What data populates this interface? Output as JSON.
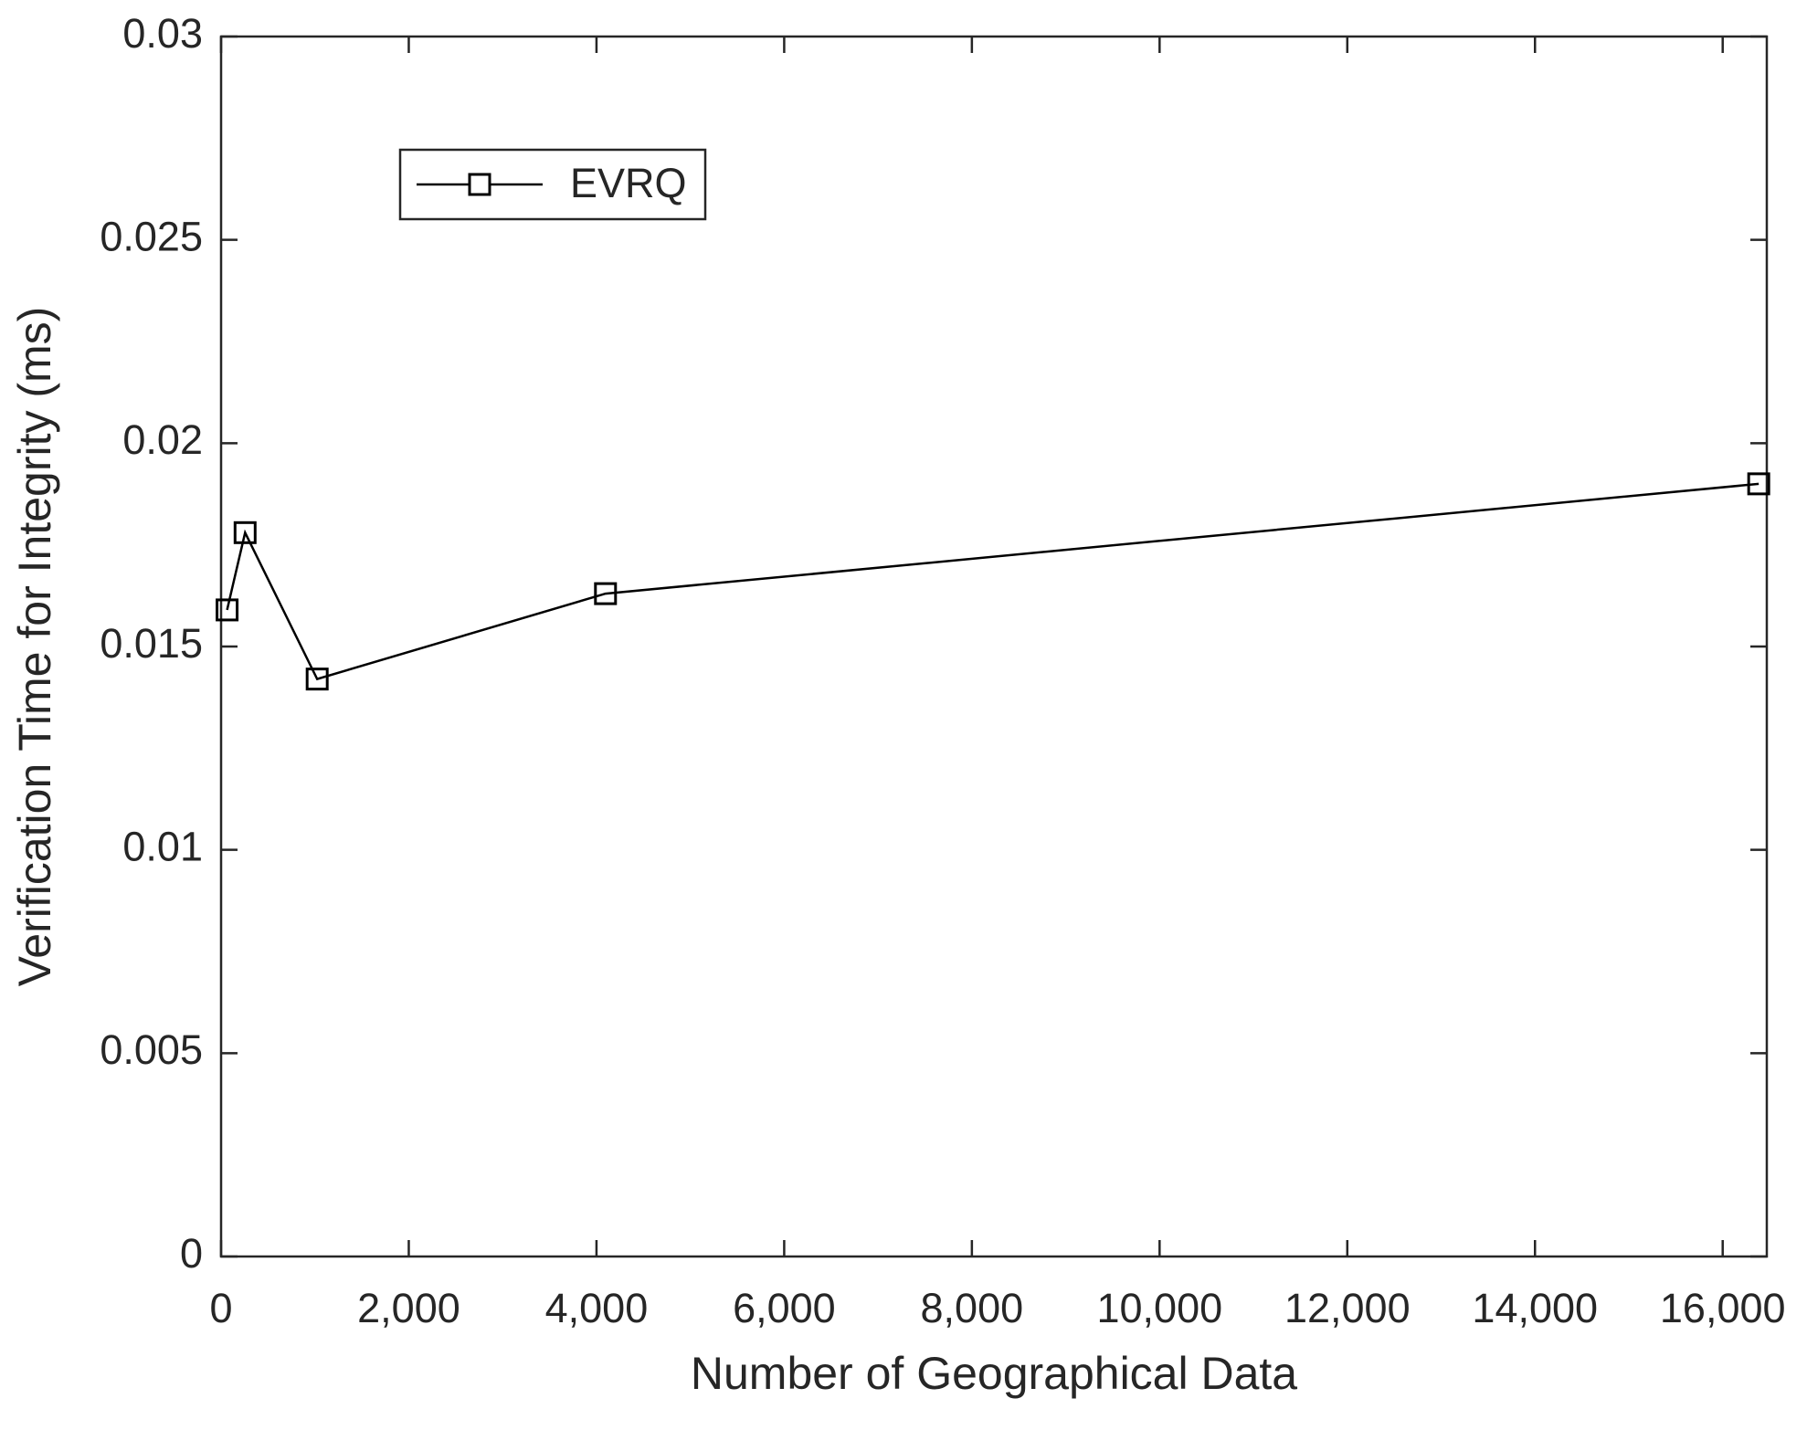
{
  "chart_data": {
    "type": "line",
    "xlabel": "Number of Geographical Data",
    "ylabel": "Verification Time for Integrity (ms)",
    "x": [
      64,
      256,
      1024,
      4096,
      16384
    ],
    "series": [
      {
        "name": "EVRQ",
        "color": "#000000",
        "marker": "square",
        "values": [
          0.0159,
          0.0178,
          0.0142,
          0.0163,
          0.019
        ]
      }
    ],
    "xlim": [
      0,
      16470
    ],
    "ylim": [
      0,
      0.03
    ],
    "xticks": [
      0,
      {
        "value": 2000,
        "label": "2,000"
      },
      {
        "value": 4000,
        "label": "4,000"
      },
      {
        "value": 6000,
        "label": "6,000"
      },
      {
        "value": 8000,
        "label": "8,000"
      },
      {
        "value": 10000,
        "label": "10,000"
      },
      {
        "value": 12000,
        "label": "12,000"
      },
      {
        "value": 14000,
        "label": "14,000"
      },
      {
        "value": 16000,
        "label": "16,000"
      }
    ],
    "yticks": [
      0,
      0.005,
      0.01,
      0.015,
      0.02,
      0.025,
      0.03
    ],
    "grid": false,
    "legend": "upper left"
  }
}
